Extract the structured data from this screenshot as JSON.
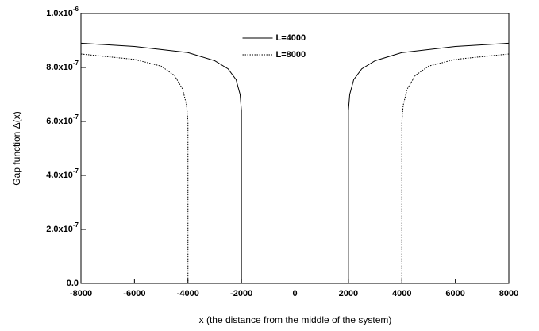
{
  "chart_data": {
    "type": "line",
    "xlabel": "x (the distance from the middle of the system)",
    "ylabel": "Gap function Δ(x)",
    "xlim": [
      -8000,
      8000
    ],
    "xticks": [
      -8000,
      -6000,
      -4000,
      -2000,
      0,
      2000,
      4000,
      6000,
      8000
    ],
    "ylim": [
      0,
      1e-06
    ],
    "yticks": [
      {
        "value": 0,
        "label": "0.0"
      },
      {
        "value": 2e-07,
        "label": "2.0x10-7"
      },
      {
        "value": 4e-07,
        "label": "4.0x10-7"
      },
      {
        "value": 6e-07,
        "label": "6.0x10-7"
      },
      {
        "value": 8e-07,
        "label": "8.0x10-7"
      },
      {
        "value": 1e-06,
        "label": "1.0x10-6"
      }
    ],
    "legend": "upper center",
    "series": [
      {
        "name": "L=4000",
        "color": "#000000",
        "dash": "solid",
        "x": [
          -8000,
          -6000,
          -4000,
          -3000,
          -2500,
          -2200,
          -2050,
          -2000,
          -2000,
          null,
          2000,
          2000,
          2050,
          2200,
          2500,
          3000,
          4000,
          6000,
          8000
        ],
        "values": [
          8.9e-07,
          8.78e-07,
          8.55e-07,
          8.25e-07,
          7.95e-07,
          7.55e-07,
          7e-07,
          6.4e-07,
          0,
          null,
          0,
          6.4e-07,
          7e-07,
          7.55e-07,
          7.95e-07,
          8.25e-07,
          8.55e-07,
          8.78e-07,
          8.9e-07
        ]
      },
      {
        "name": "L=8000",
        "color": "#000000",
        "dash": "dotted",
        "x": [
          -8000,
          -6000,
          -5000,
          -4500,
          -4200,
          -4050,
          -4000,
          -4000,
          null,
          4000,
          4000,
          4050,
          4200,
          4500,
          5000,
          6000,
          8000
        ],
        "values": [
          8.5e-07,
          8.3e-07,
          8.05e-07,
          7.7e-07,
          7.2e-07,
          6.6e-07,
          6e-07,
          0,
          null,
          0,
          6e-07,
          6.6e-07,
          7.2e-07,
          7.7e-07,
          8.05e-07,
          8.3e-07,
          8.5e-07
        ]
      }
    ]
  }
}
